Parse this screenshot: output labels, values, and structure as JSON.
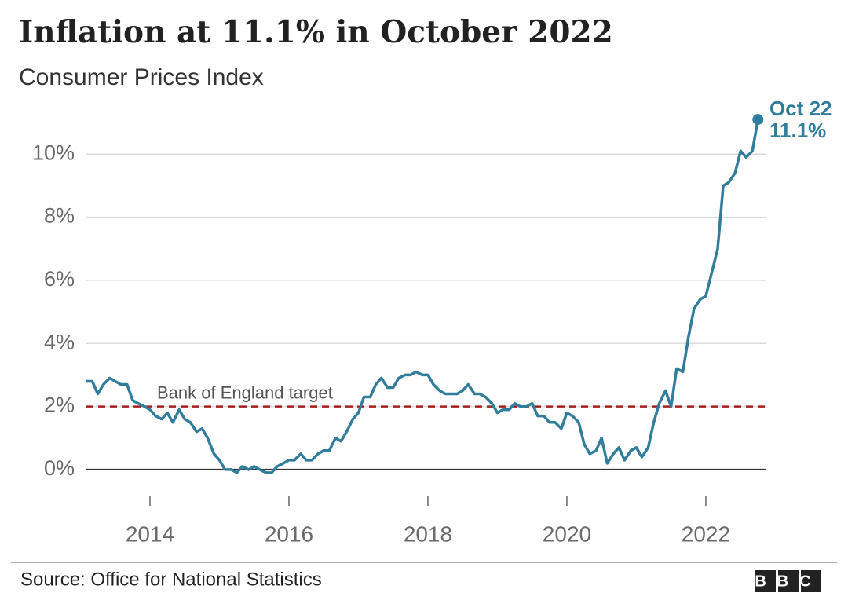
{
  "chart_data": {
    "type": "line",
    "title": "Inflation at 11.1% in October 2022",
    "subtitle": "Consumer Prices Index",
    "source": "Source: Office for National Statistics",
    "logo": "BBC",
    "x": [
      2013.08,
      2013.17,
      2013.25,
      2013.33,
      2013.42,
      2013.5,
      2013.58,
      2013.67,
      2013.75,
      2013.83,
      2013.92,
      2014,
      2014.08,
      2014.17,
      2014.25,
      2014.33,
      2014.42,
      2014.5,
      2014.58,
      2014.67,
      2014.75,
      2014.83,
      2014.92,
      2015,
      2015.08,
      2015.17,
      2015.25,
      2015.33,
      2015.42,
      2015.5,
      2015.58,
      2015.67,
      2015.75,
      2015.83,
      2015.92,
      2016,
      2016.08,
      2016.17,
      2016.25,
      2016.33,
      2016.42,
      2016.5,
      2016.58,
      2016.67,
      2016.75,
      2016.83,
      2016.92,
      2017,
      2017.08,
      2017.17,
      2017.25,
      2017.33,
      2017.42,
      2017.5,
      2017.58,
      2017.67,
      2017.75,
      2017.83,
      2017.92,
      2018,
      2018.08,
      2018.17,
      2018.25,
      2018.33,
      2018.42,
      2018.5,
      2018.58,
      2018.67,
      2018.75,
      2018.83,
      2018.92,
      2019,
      2019.08,
      2019.17,
      2019.25,
      2019.33,
      2019.42,
      2019.5,
      2019.58,
      2019.67,
      2019.75,
      2019.83,
      2019.92,
      2020,
      2020.08,
      2020.17,
      2020.25,
      2020.33,
      2020.42,
      2020.5,
      2020.58,
      2020.67,
      2020.75,
      2020.83,
      2020.92,
      2021,
      2021.08,
      2021.17,
      2021.25,
      2021.33,
      2021.42,
      2021.5,
      2021.58,
      2021.67,
      2021.75,
      2021.83,
      2021.92,
      2022,
      2022.08,
      2022.17,
      2022.25,
      2022.33,
      2022.42,
      2022.5,
      2022.58,
      2022.67,
      2022.75
    ],
    "series": [
      {
        "color": "#317d9c",
        "values": [
          2.8,
          2.8,
          2.4,
          2.7,
          2.9,
          2.8,
          2.7,
          2.7,
          2.2,
          2.1,
          2.0,
          1.9,
          1.7,
          1.6,
          1.8,
          1.5,
          1.9,
          1.6,
          1.5,
          1.2,
          1.3,
          1.0,
          0.5,
          0.3,
          0.0,
          0.0,
          -0.1,
          0.1,
          0.0,
          0.1,
          0.0,
          -0.1,
          -0.1,
          0.1,
          0.2,
          0.3,
          0.3,
          0.5,
          0.3,
          0.3,
          0.5,
          0.6,
          0.6,
          1.0,
          0.9,
          1.2,
          1.6,
          1.8,
          2.3,
          2.3,
          2.7,
          2.9,
          2.6,
          2.6,
          2.9,
          3.0,
          3.0,
          3.1,
          3.0,
          3.0,
          2.7,
          2.5,
          2.4,
          2.4,
          2.4,
          2.5,
          2.7,
          2.4,
          2.4,
          2.3,
          2.1,
          1.8,
          1.9,
          1.9,
          2.1,
          2.0,
          2.0,
          2.1,
          1.7,
          1.7,
          1.5,
          1.5,
          1.3,
          1.8,
          1.7,
          1.5,
          0.8,
          0.5,
          0.6,
          1.0,
          0.2,
          0.5,
          0.7,
          0.3,
          0.6,
          0.7,
          0.4,
          0.7,
          1.5,
          2.1,
          2.5,
          2.0,
          3.2,
          3.1,
          4.2,
          5.1,
          5.4,
          5.5,
          6.2,
          7.0,
          9.0,
          9.1,
          9.4,
          10.1,
          9.9,
          10.1,
          11.1
        ]
      }
    ],
    "highlight": {
      "label": "Oct 22",
      "value_label": "11.1%"
    },
    "reference_line": {
      "label": "Bank of England target",
      "value": 2,
      "color": "#a51f1f"
    },
    "xlim": [
      2013.0,
      2022.95
    ],
    "xticks": [
      2014,
      2016,
      2018,
      2020,
      2022
    ],
    "ylim": [
      -0.55,
      11.7
    ],
    "yticks": [
      {
        "value": 0,
        "label": "0%"
      },
      {
        "value": 2,
        "label": "2%"
      },
      {
        "value": 4,
        "label": "4%"
      },
      {
        "value": 6,
        "label": "6%"
      },
      {
        "value": 8,
        "label": "8%"
      },
      {
        "value": 10,
        "label": "10%"
      }
    ],
    "grid": true
  }
}
